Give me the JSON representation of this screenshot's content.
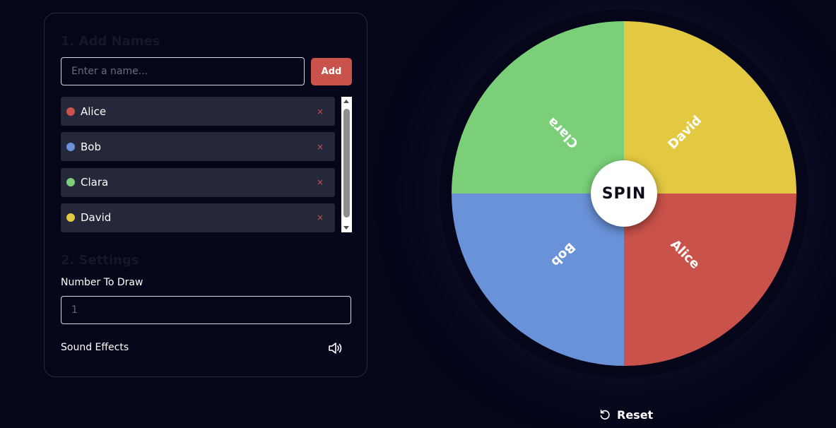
{
  "names_section": {
    "title": "1. Add Names",
    "input_placeholder": "Enter a name...",
    "add_label": "Add",
    "remove_symbol": "×",
    "entries": [
      {
        "name": "Alice",
        "color": "#c9524a"
      },
      {
        "name": "Bob",
        "color": "#6a92d8"
      },
      {
        "name": "Clara",
        "color": "#7acf78"
      },
      {
        "name": "David",
        "color": "#e3c941"
      }
    ]
  },
  "settings_section": {
    "title": "2. Settings",
    "number_label": "Number To Draw",
    "number_placeholder": "1",
    "sound_label": "Sound Effects",
    "sound_icon": "speaker-icon"
  },
  "wheel": {
    "spin_label": "SPIN",
    "segments": [
      {
        "name": "David",
        "color": "#e3c941"
      },
      {
        "name": "Alice",
        "color": "#c9524a"
      },
      {
        "name": "Bob",
        "color": "#6a92d8"
      },
      {
        "name": "Clara",
        "color": "#7acf78"
      }
    ]
  },
  "reset": {
    "label": "Reset",
    "icon": "reset-icon"
  }
}
